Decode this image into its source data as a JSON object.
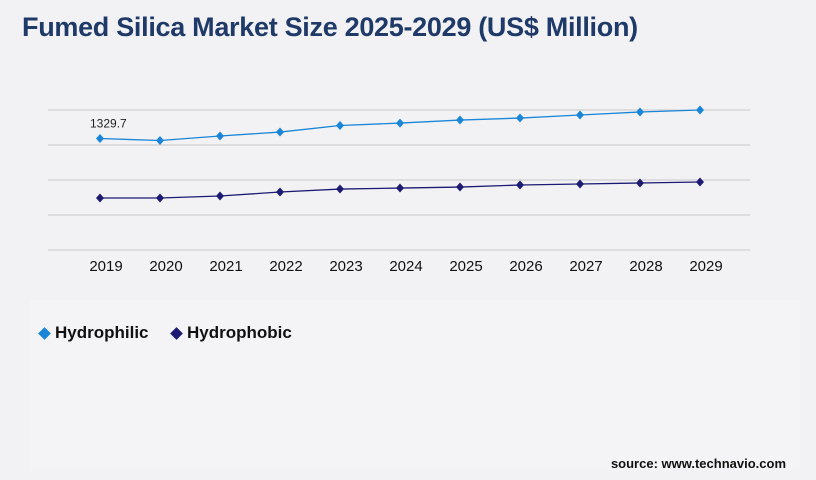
{
  "title": "Fumed Silica Market Size 2025-2029 (US$ Million)",
  "source": "source: www.technavio.com",
  "chart_data": {
    "type": "line",
    "title": "Fumed Silica Market Size 2025-2029 (US$ Million)",
    "categories": [
      "2019",
      "2020",
      "2021",
      "2022",
      "2023",
      "2024",
      "2025",
      "2026",
      "2027",
      "2028",
      "2029"
    ],
    "ylim": [
      0,
      1670
    ],
    "grid": true,
    "legend": "bottom-left",
    "series": [
      {
        "name": "Hydrophilic",
        "color": "#1a86d8",
        "values": [
          1329.7,
          1306,
          1360,
          1407,
          1485,
          1514,
          1550,
          1574,
          1610,
          1646,
          1670
        ]
      },
      {
        "name": "Hydrophobic",
        "color": "#1c1a72",
        "values": [
          620,
          620,
          644,
          692,
          727,
          739,
          751,
          775,
          787,
          799,
          811
        ]
      }
    ],
    "annotations": [
      {
        "x": "2019",
        "series": "Hydrophilic",
        "text": "1329.7"
      }
    ]
  }
}
